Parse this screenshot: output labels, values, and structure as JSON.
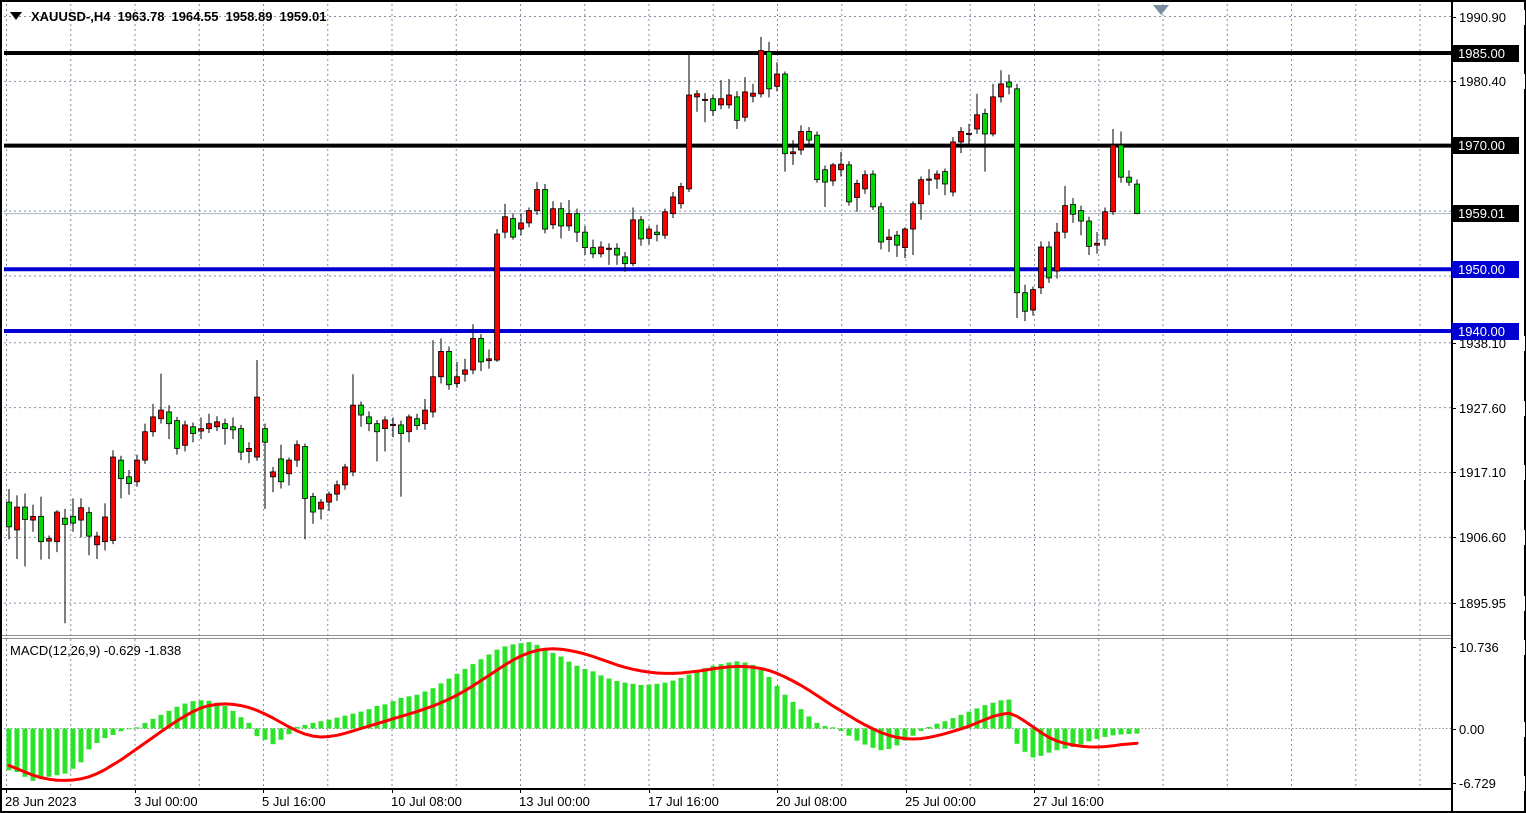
{
  "header": {
    "symbol_period": "XAUUSD-,H4",
    "open": "1963.78",
    "high": "1964.55",
    "low": "1958.89",
    "close": "1959.01"
  },
  "colors": {
    "candle_up": "#f40000",
    "candle_down": "#00d900",
    "candle_border": "#000000",
    "wick": "#000000",
    "grid": "#8091a5",
    "macd_bar": "#2de22d",
    "macd_signal": "#ff0000",
    "line_black": "#000000",
    "line_blue": "#0000d2",
    "current_price_line": "#a8b2bc",
    "badge_black": "#000000",
    "badge_blue": "#0000d2",
    "shift_marker": "#7b8da0"
  },
  "chart_data": {
    "type": "candlestick",
    "symbol": "XAUUSD-",
    "timeframe": "H4",
    "title": "XAUUSD-,H4 1963.78 1964.55 1958.89 1959.01",
    "last_bar": {
      "open": 1963.78,
      "high": 1964.55,
      "low": 1958.89,
      "close": 1959.01
    },
    "y_axis_ticks": [
      {
        "label": "1990.90",
        "price": 1990.9
      },
      {
        "label": "1980.40",
        "price": 1980.4
      },
      {
        "label": "1938.10",
        "price": 1938.1
      },
      {
        "label": "1927.60",
        "price": 1927.6
      },
      {
        "label": "1917.10",
        "price": 1917.1
      },
      {
        "label": "1906.60",
        "price": 1906.6
      },
      {
        "label": "1895.95",
        "price": 1895.95
      }
    ],
    "gridline_prices": [
      1990.9,
      1980.4,
      1969.9,
      1959.4,
      1948.9,
      1938.1,
      1927.6,
      1917.1,
      1906.6,
      1895.95
    ],
    "price_badges": [
      {
        "label": "1985.00",
        "price": 1985.0,
        "style": "black"
      },
      {
        "label": "1970.00",
        "price": 1970.0,
        "style": "black"
      },
      {
        "label": "1959.01",
        "price": 1959.01,
        "style": "black"
      },
      {
        "label": "1950.00",
        "price": 1950.0,
        "style": "blue"
      },
      {
        "label": "1940.00",
        "price": 1940.0,
        "style": "blue"
      }
    ],
    "horizontal_lines": [
      {
        "price": 1985.0,
        "style": "black",
        "width": 4
      },
      {
        "price": 1970.0,
        "style": "black",
        "width": 4
      },
      {
        "price": 1950.0,
        "style": "blue",
        "width": 4
      },
      {
        "price": 1940.0,
        "style": "blue",
        "width": 4
      }
    ],
    "current_price": 1959.01,
    "x_axis_labels": [
      {
        "label": "28 Jun 2023",
        "x": 4
      },
      {
        "label": "3 Jul 00:00",
        "x": 133
      },
      {
        "label": "5 Jul 16:00",
        "x": 261
      },
      {
        "label": "10 Jul 08:00",
        "x": 390
      },
      {
        "label": "13 Jul 00:00",
        "x": 518
      },
      {
        "label": "17 Jul 16:00",
        "x": 647
      },
      {
        "label": "20 Jul 08:00",
        "x": 775
      },
      {
        "label": "25 Jul 00:00",
        "x": 904
      },
      {
        "label": "27 Jul 16:00",
        "x": 1032
      }
    ],
    "candles": [
      [
        1912.3,
        1914.4,
        1906.3,
        1908.3
      ],
      [
        1907.8,
        1913.4,
        1903.1,
        1911.5
      ],
      [
        1911.5,
        1913.7,
        1901.9,
        1909.5
      ],
      [
        1909.4,
        1911.9,
        1907.5,
        1910.0
      ],
      [
        1910.0,
        1913.2,
        1903.0,
        1905.9
      ],
      [
        1906.0,
        1906.9,
        1903.1,
        1906.4
      ],
      [
        1905.9,
        1911.0,
        1904.2,
        1910.7
      ],
      [
        1909.7,
        1911.2,
        1892.7,
        1908.7
      ],
      [
        1910.0,
        1912.9,
        1907.5,
        1908.9
      ],
      [
        1909.4,
        1912.9,
        1906.6,
        1911.4
      ],
      [
        1910.6,
        1911.5,
        1903.7,
        1906.8
      ],
      [
        1905.4,
        1907.5,
        1903.1,
        1906.8
      ],
      [
        1905.9,
        1912.1,
        1904.5,
        1909.9
      ],
      [
        1906.1,
        1920.7,
        1905.5,
        1919.6
      ],
      [
        1919.1,
        1919.8,
        1912.9,
        1916.1
      ],
      [
        1916.4,
        1917.5,
        1913.5,
        1915.3
      ],
      [
        1915.6,
        1920.0,
        1914.8,
        1919.1
      ],
      [
        1919.1,
        1925.0,
        1918.5,
        1923.7
      ],
      [
        1923.7,
        1928.2,
        1922.9,
        1926.1
      ],
      [
        1925.8,
        1933.1,
        1925.0,
        1927.2
      ],
      [
        1926.9,
        1928.0,
        1922.5,
        1925.0
      ],
      [
        1925.5,
        1926.1,
        1920.0,
        1921.0
      ],
      [
        1921.5,
        1925.5,
        1920.5,
        1924.8
      ],
      [
        1924.5,
        1925.2,
        1922.0,
        1923.4
      ],
      [
        1923.8,
        1926.0,
        1922.5,
        1924.2
      ],
      [
        1924.2,
        1926.6,
        1923.5,
        1925.0
      ],
      [
        1924.5,
        1926.2,
        1923.8,
        1925.3
      ],
      [
        1925.0,
        1925.8,
        1921.6,
        1924.2
      ],
      [
        1924.5,
        1926.0,
        1922.5,
        1924.0
      ],
      [
        1924.2,
        1924.8,
        1919.1,
        1920.4
      ],
      [
        1920.5,
        1922.0,
        1918.6,
        1921.0
      ],
      [
        1919.6,
        1935.3,
        1919.0,
        1929.3
      ],
      [
        1924.2,
        1925.0,
        1911.2,
        1922.0
      ],
      [
        1916.4,
        1918.0,
        1913.9,
        1917.2
      ],
      [
        1919.3,
        1921.6,
        1914.5,
        1915.6
      ],
      [
        1916.9,
        1919.5,
        1915.0,
        1919.1
      ],
      [
        1919.1,
        1922.3,
        1918.0,
        1921.6
      ],
      [
        1921.3,
        1921.8,
        1906.3,
        1912.9
      ],
      [
        1913.2,
        1913.8,
        1908.8,
        1910.7
      ],
      [
        1911.2,
        1912.8,
        1909.5,
        1912.3
      ],
      [
        1912.3,
        1914.0,
        1910.9,
        1913.6
      ],
      [
        1913.6,
        1915.8,
        1912.5,
        1915.1
      ],
      [
        1915.1,
        1918.5,
        1914.3,
        1918.0
      ],
      [
        1917.2,
        1933.0,
        1916.5,
        1928.0
      ],
      [
        1928.0,
        1928.6,
        1924.5,
        1926.4
      ],
      [
        1926.1,
        1927.0,
        1923.8,
        1925.0
      ],
      [
        1925.0,
        1925.6,
        1918.9,
        1923.7
      ],
      [
        1924.2,
        1926.2,
        1920.5,
        1925.6
      ],
      [
        1924.7,
        1926.0,
        1922.8,
        1924.9
      ],
      [
        1924.8,
        1925.5,
        1913.2,
        1923.4
      ],
      [
        1923.7,
        1926.5,
        1922.0,
        1926.1
      ],
      [
        1925.8,
        1926.6,
        1924.0,
        1924.7
      ],
      [
        1925.0,
        1929.0,
        1924.0,
        1927.2
      ],
      [
        1926.9,
        1938.5,
        1926.0,
        1932.6
      ],
      [
        1932.6,
        1938.8,
        1931.5,
        1936.7
      ],
      [
        1936.7,
        1937.5,
        1930.5,
        1931.3
      ],
      [
        1931.5,
        1935.0,
        1930.8,
        1932.6
      ],
      [
        1933.0,
        1935.5,
        1931.8,
        1933.7
      ],
      [
        1933.7,
        1941.1,
        1933.0,
        1938.8
      ],
      [
        1938.8,
        1939.5,
        1933.5,
        1935.0
      ],
      [
        1935.2,
        1937.0,
        1933.9,
        1935.5
      ],
      [
        1935.3,
        1956.5,
        1935.0,
        1955.7
      ],
      [
        1956.0,
        1960.6,
        1955.0,
        1958.5
      ],
      [
        1958.2,
        1959.0,
        1954.8,
        1955.2
      ],
      [
        1956.5,
        1959.0,
        1955.5,
        1957.5
      ],
      [
        1957.5,
        1960.0,
        1956.8,
        1959.5
      ],
      [
        1959.5,
        1964.1,
        1958.8,
        1962.9
      ],
      [
        1962.9,
        1963.8,
        1955.8,
        1956.5
      ],
      [
        1957.2,
        1961.0,
        1956.5,
        1959.8
      ],
      [
        1959.8,
        1960.8,
        1955.0,
        1957.0
      ],
      [
        1957.0,
        1961.2,
        1956.2,
        1959.0
      ],
      [
        1959.0,
        1959.8,
        1954.4,
        1956.0
      ],
      [
        1956.0,
        1957.0,
        1952.3,
        1953.5
      ],
      [
        1953.5,
        1954.8,
        1951.8,
        1952.5
      ],
      [
        1952.5,
        1954.5,
        1951.9,
        1953.6
      ],
      [
        1953.4,
        1954.2,
        1950.7,
        1953.4
      ],
      [
        1953.4,
        1954.2,
        1950.7,
        1952.3
      ],
      [
        1952.0,
        1952.8,
        1949.6,
        1950.9
      ],
      [
        1950.9,
        1960.0,
        1950.5,
        1958.0
      ],
      [
        1958.0,
        1958.6,
        1953.8,
        1954.9
      ],
      [
        1955.0,
        1957.0,
        1954.0,
        1956.5
      ],
      [
        1956.0,
        1957.2,
        1954.5,
        1955.6
      ],
      [
        1955.5,
        1959.8,
        1954.9,
        1959.3
      ],
      [
        1959.0,
        1962.5,
        1958.3,
        1961.7
      ],
      [
        1960.6,
        1964.0,
        1959.8,
        1963.4
      ],
      [
        1963.0,
        1984.7,
        1962.5,
        1978.2
      ],
      [
        1977.9,
        1979.0,
        1975.5,
        1978.4
      ],
      [
        1977.5,
        1978.5,
        1973.8,
        1977.5
      ],
      [
        1977.6,
        1978.3,
        1974.8,
        1975.7
      ],
      [
        1976.6,
        1980.6,
        1975.9,
        1977.6
      ],
      [
        1976.6,
        1980.8,
        1976.0,
        1978.2
      ],
      [
        1977.9,
        1978.8,
        1972.7,
        1974.1
      ],
      [
        1974.6,
        1981.1,
        1973.9,
        1978.7
      ],
      [
        1978.0,
        1980.0,
        1977.0,
        1978.5
      ],
      [
        1978.4,
        1987.6,
        1977.8,
        1985.4
      ],
      [
        1985.2,
        1986.8,
        1977.8,
        1979.2
      ],
      [
        1979.6,
        1983.5,
        1978.8,
        1981.6
      ],
      [
        1981.6,
        1982.0,
        1965.8,
        1968.7
      ],
      [
        1968.7,
        1970.9,
        1966.9,
        1969.0
      ],
      [
        1969.3,
        1973.3,
        1968.5,
        1972.3
      ],
      [
        1972.3,
        1973.0,
        1969.8,
        1970.9
      ],
      [
        1971.7,
        1972.3,
        1964.0,
        1964.5
      ],
      [
        1966.1,
        1966.8,
        1960.1,
        1964.1
      ],
      [
        1964.3,
        1967.2,
        1963.5,
        1966.9
      ],
      [
        1966.1,
        1969.0,
        1965.0,
        1967.0
      ],
      [
        1966.9,
        1967.5,
        1960.3,
        1960.9
      ],
      [
        1961.6,
        1964.5,
        1959.3,
        1963.9
      ],
      [
        1963.0,
        1966.0,
        1962.2,
        1965.3
      ],
      [
        1965.4,
        1966.0,
        1959.6,
        1960.1
      ],
      [
        1960.1,
        1960.8,
        1953.2,
        1954.4
      ],
      [
        1954.8,
        1956.5,
        1952.8,
        1955.2
      ],
      [
        1955.5,
        1956.2,
        1952.0,
        1953.9
      ],
      [
        1953.5,
        1956.8,
        1951.8,
        1956.5
      ],
      [
        1956.5,
        1961.0,
        1952.3,
        1960.6
      ],
      [
        1960.6,
        1965.0,
        1958.0,
        1964.5
      ],
      [
        1964.6,
        1966.2,
        1962.0,
        1964.6
      ],
      [
        1964.6,
        1966.0,
        1963.0,
        1965.4
      ],
      [
        1965.8,
        1966.3,
        1962.0,
        1963.8
      ],
      [
        1962.5,
        1971.4,
        1961.8,
        1970.6
      ],
      [
        1970.6,
        1973.0,
        1968.8,
        1972.3
      ],
      [
        1971.8,
        1973.5,
        1970.0,
        1972.0
      ],
      [
        1972.7,
        1978.4,
        1971.9,
        1975.0
      ],
      [
        1975.2,
        1976.0,
        1965.8,
        1971.9
      ],
      [
        1971.9,
        1980.0,
        1971.5,
        1977.9
      ],
      [
        1977.9,
        1982.2,
        1977.0,
        1980.0
      ],
      [
        1980.3,
        1981.5,
        1978.3,
        1979.5
      ],
      [
        1979.2,
        1980.0,
        1942.1,
        1946.2
      ],
      [
        1946.2,
        1947.5,
        1941.6,
        1943.2
      ],
      [
        1943.4,
        1947.2,
        1942.5,
        1946.7
      ],
      [
        1947.0,
        1954.5,
        1946.0,
        1953.6
      ],
      [
        1953.6,
        1954.5,
        1947.8,
        1948.6
      ],
      [
        1949.7,
        1957.5,
        1948.5,
        1956.0
      ],
      [
        1956.0,
        1963.5,
        1955.0,
        1960.3
      ],
      [
        1960.5,
        1961.5,
        1957.5,
        1958.9
      ],
      [
        1959.5,
        1960.3,
        1955.5,
        1957.8
      ],
      [
        1957.8,
        1958.5,
        1952.3,
        1953.7
      ],
      [
        1953.9,
        1956.0,
        1952.5,
        1954.2
      ],
      [
        1954.9,
        1960.0,
        1953.8,
        1959.3
      ],
      [
        1959.3,
        1972.7,
        1958.8,
        1970.1
      ],
      [
        1970.1,
        1972.3,
        1964.0,
        1964.9
      ],
      [
        1964.9,
        1966.0,
        1963.5,
        1964.1
      ],
      [
        1963.78,
        1964.55,
        1958.89,
        1959.01
      ]
    ],
    "macd": {
      "label": "MACD(12,26,9) -0.629 -1.838",
      "params": "12,26,9",
      "macd_value": -0.629,
      "signal_value": -1.838,
      "y_ticks": [
        {
          "label": "10.736",
          "value": 10.736
        },
        {
          "label": "0.00",
          "value": 0.0
        },
        {
          "label": "-6.729",
          "value": -6.729
        }
      ],
      "histogram": [
        -5.2,
        -5.4,
        -6.0,
        -6.5,
        -6.3,
        -6.0,
        -5.8,
        -5.6,
        -5.0,
        -4.2,
        -2.6,
        -1.8,
        -1.2,
        -0.8,
        -0.35,
        -0.1,
        0.15,
        0.7,
        1.2,
        1.7,
        2.2,
        2.7,
        3.1,
        3.4,
        3.5,
        3.45,
        3.2,
        2.8,
        2.2,
        1.4,
        0.7,
        -0.95,
        -1.4,
        -1.95,
        -1.4,
        -0.7,
        0.2,
        0.45,
        0.7,
        0.9,
        1.1,
        1.35,
        1.6,
        1.85,
        2.1,
        2.4,
        2.8,
        3.0,
        3.4,
        3.8,
        4.0,
        4.2,
        4.6,
        5.0,
        5.6,
        6.2,
        6.8,
        7.4,
        8.0,
        8.6,
        9.2,
        9.8,
        10.2,
        10.45,
        10.6,
        10.736,
        10.4,
        10.0,
        9.4,
        8.95,
        8.3,
        7.8,
        7.4,
        7.1,
        6.6,
        6.2,
        5.9,
        5.7,
        5.55,
        5.4,
        5.45,
        5.55,
        5.7,
        5.95,
        6.3,
        6.7,
        7.1,
        7.5,
        7.8,
        8.0,
        8.2,
        8.35,
        8.2,
        7.9,
        7.3,
        6.4,
        5.3,
        4.2,
        3.3,
        2.4,
        1.5,
        0.7,
        0.3,
        0.15,
        -0.3,
        -0.9,
        -1.5,
        -2.0,
        -2.4,
        -2.7,
        -2.55,
        -2.1,
        -1.5,
        -0.9,
        -0.3,
        0.2,
        0.6,
        0.9,
        1.3,
        1.7,
        2.1,
        2.5,
        2.9,
        3.2,
        3.5,
        3.6,
        -1.9,
        -2.9,
        -3.6,
        -3.4,
        -3.0,
        -2.7,
        -2.5,
        -2.3,
        -2.0,
        -1.6,
        -1.3,
        -1.05,
        -0.85,
        -0.75,
        -0.68,
        -0.629
      ],
      "signal": [
        -4.6,
        -5.0,
        -5.4,
        -5.8,
        -6.1,
        -6.3,
        -6.42,
        -6.45,
        -6.4,
        -6.25,
        -6.0,
        -5.6,
        -5.1,
        -4.5,
        -3.9,
        -3.2,
        -2.5,
        -1.8,
        -1.1,
        -0.4,
        0.3,
        0.95,
        1.55,
        2.1,
        2.55,
        2.85,
        3.0,
        3.05,
        3.0,
        2.85,
        2.6,
        2.25,
        1.8,
        1.3,
        0.75,
        0.2,
        -0.3,
        -0.7,
        -0.95,
        -1.05,
        -1.0,
        -0.85,
        -0.6,
        -0.3,
        0.0,
        0.3,
        0.6,
        0.9,
        1.2,
        1.5,
        1.8,
        2.1,
        2.45,
        2.8,
        3.2,
        3.65,
        4.15,
        4.7,
        5.3,
        5.95,
        6.6,
        7.25,
        7.9,
        8.5,
        9.0,
        9.4,
        9.7,
        9.85,
        9.9,
        9.85,
        9.7,
        9.5,
        9.25,
        8.95,
        8.6,
        8.25,
        7.9,
        7.6,
        7.35,
        7.15,
        7.0,
        6.9,
        6.85,
        6.85,
        6.9,
        7.0,
        7.1,
        7.25,
        7.4,
        7.55,
        7.65,
        7.7,
        7.7,
        7.6,
        7.45,
        7.2,
        6.85,
        6.4,
        5.9,
        5.35,
        4.75,
        4.1,
        3.45,
        2.8,
        2.2,
        1.6,
        1.0,
        0.45,
        -0.05,
        -0.5,
        -0.85,
        -1.1,
        -1.25,
        -1.3,
        -1.25,
        -1.1,
        -0.9,
        -0.65,
        -0.35,
        -0.05,
        0.3,
        0.7,
        1.1,
        1.5,
        1.75,
        1.9,
        1.5,
        0.9,
        0.2,
        -0.5,
        -1.1,
        -1.55,
        -1.85,
        -2.05,
        -2.2,
        -2.28,
        -2.3,
        -2.25,
        -2.15,
        -2.0,
        -1.92,
        -1.838
      ]
    }
  }
}
